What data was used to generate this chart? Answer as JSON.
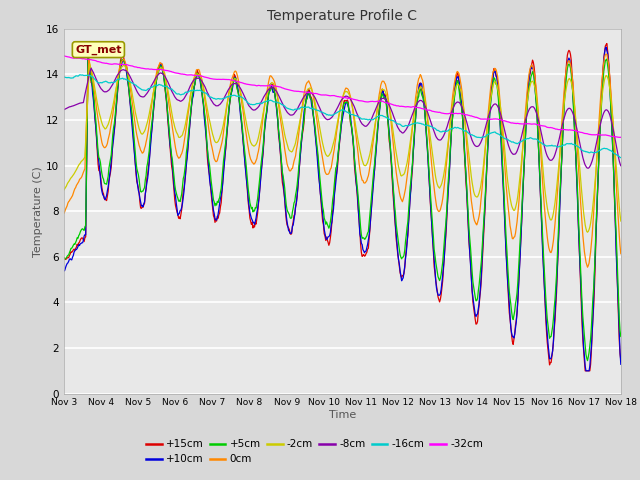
{
  "title": "Temperature Profile C",
  "xlabel": "Time",
  "ylabel": "Temperature (C)",
  "ylim": [
    0,
    16
  ],
  "xlim": [
    0,
    360
  ],
  "fig_bg": "#d8d8d8",
  "plot_bg": "#e8e8e8",
  "grid_color": "white",
  "series_colors": {
    "+15cm": "#dd0000",
    "+10cm": "#0000dd",
    "+5cm": "#00cc00",
    "0cm": "#ff8800",
    "-2cm": "#cccc00",
    "-8cm": "#8800aa",
    "-16cm": "#00cccc",
    "-32cm": "#ff00ff"
  },
  "xtick_labels": [
    "Nov 3",
    "Nov 4",
    "Nov 5",
    "Nov 6",
    "Nov 7",
    "Nov 8",
    "Nov 9",
    "Nov 10",
    "Nov 11",
    "Nov 12",
    "Nov 13",
    "Nov 14",
    "Nov 15",
    "Nov 16",
    "Nov 17",
    "Nov 18"
  ],
  "xtick_positions": [
    0,
    24,
    48,
    72,
    96,
    120,
    144,
    168,
    192,
    216,
    240,
    264,
    288,
    312,
    336,
    360
  ],
  "ytick_labels": [
    "0",
    "2",
    "4",
    "6",
    "8",
    "10",
    "12",
    "14",
    "16"
  ],
  "ytick_positions": [
    0,
    2,
    4,
    6,
    8,
    10,
    12,
    14,
    16
  ],
  "annotation_text": "GT_met",
  "n_points": 720
}
